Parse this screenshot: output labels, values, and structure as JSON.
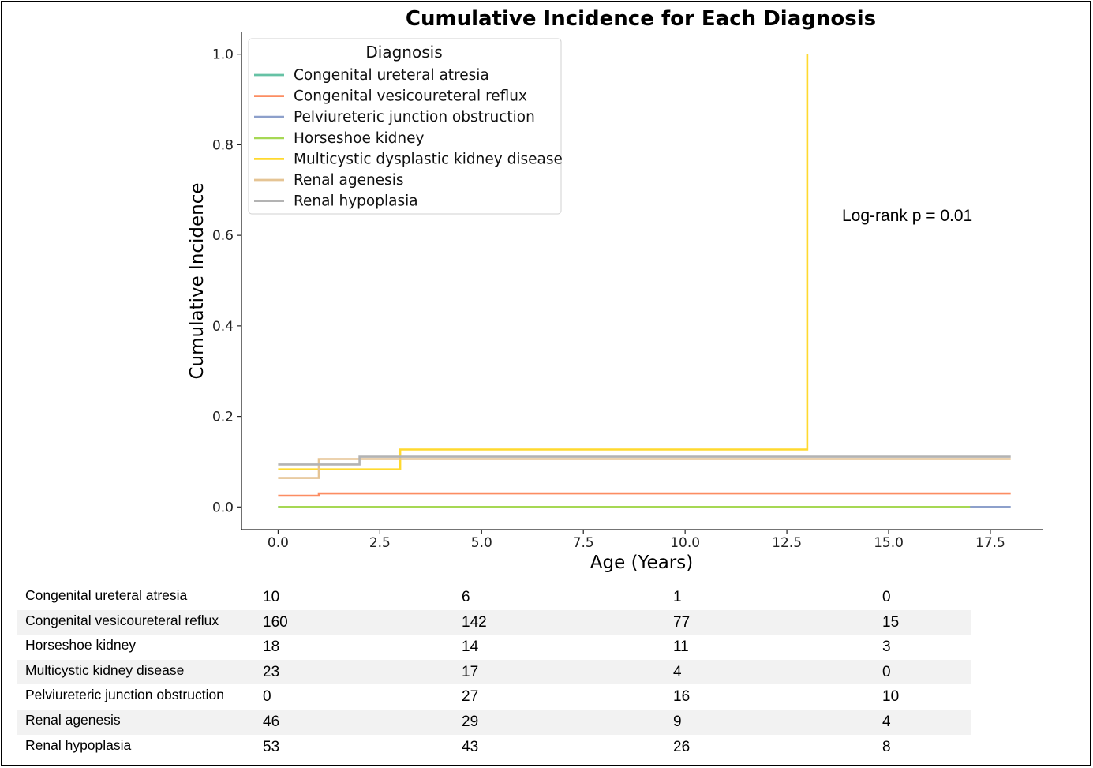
{
  "chart_data": {
    "type": "line",
    "step": true,
    "title": "Cumulative Incidence for Each Diagnosis",
    "xlabel": "Age (Years)",
    "ylabel": "Cumulative Incidence",
    "xlim": [
      -0.9,
      18.8
    ],
    "ylim": [
      -0.05,
      1.05
    ],
    "xticks": [
      0.0,
      2.5,
      5.0,
      7.5,
      10.0,
      12.5,
      15.0,
      17.5
    ],
    "xtick_labels": [
      "0.0",
      "2.5",
      "5.0",
      "7.5",
      "10.0",
      "12.5",
      "15.0",
      "17.5"
    ],
    "yticks": [
      0.0,
      0.2,
      0.4,
      0.6,
      0.8,
      1.0
    ],
    "ytick_labels": [
      "0.0",
      "0.2",
      "0.4",
      "0.6",
      "0.8",
      "1.0"
    ],
    "grid": false,
    "legend": {
      "title": "Diagnosis",
      "placement": "upper-left"
    },
    "annotation": "Log-rank p = 0.01",
    "series": [
      {
        "name": "Congenital ureteral atresia",
        "color": "#66c2a5",
        "x": [
          0,
          12
        ],
        "y": [
          0.0,
          0.0
        ]
      },
      {
        "name": "Congenital vesicoureteral reflux",
        "color": "#fc8d62",
        "x": [
          0,
          1,
          1,
          18
        ],
        "y": [
          0.025,
          0.025,
          0.03,
          0.03
        ]
      },
      {
        "name": "Pelviureteric junction obstruction",
        "color": "#8da0cb",
        "x": [
          0,
          18
        ],
        "y": [
          0.0,
          0.0
        ]
      },
      {
        "name": "Horseshoe kidney",
        "color": "#a6d854",
        "x": [
          0,
          17
        ],
        "y": [
          0.0,
          0.0
        ]
      },
      {
        "name": "Multicystic dysplastic kidney disease",
        "color": "#ffd92f",
        "x": [
          0,
          1,
          1,
          3,
          3,
          13,
          13
        ],
        "y": [
          0.083,
          0.083,
          0.083,
          0.083,
          0.127,
          0.127,
          1.0
        ]
      },
      {
        "name": "Renal agenesis",
        "color": "#e5c494",
        "x": [
          0,
          1,
          1,
          18
        ],
        "y": [
          0.064,
          0.064,
          0.106,
          0.106
        ]
      },
      {
        "name": "Renal hypoplasia",
        "color": "#b3b3b3",
        "x": [
          0,
          2,
          2,
          18
        ],
        "y": [
          0.094,
          0.094,
          0.111,
          0.111
        ]
      }
    ]
  },
  "risk_table": {
    "rows": [
      {
        "label": "Congenital ureteral atresia",
        "values": [
          "10",
          "6",
          "1",
          "0"
        ]
      },
      {
        "label": "Congenital vesicoureteral reflux",
        "values": [
          "160",
          "142",
          "77",
          "15"
        ]
      },
      {
        "label": "Horseshoe kidney",
        "values": [
          "18",
          "14",
          "11",
          "3"
        ]
      },
      {
        "label": "Multicystic kidney disease",
        "values": [
          "23",
          "17",
          "4",
          "0"
        ]
      },
      {
        "label": "Pelviureteric junction obstruction",
        "values": [
          "0",
          "27",
          "16",
          "10"
        ]
      },
      {
        "label": "Renal agenesis",
        "values": [
          "46",
          "29",
          "9",
          "4"
        ]
      },
      {
        "label": "Renal hypoplasia",
        "values": [
          "53",
          "43",
          "26",
          "8"
        ]
      }
    ]
  }
}
